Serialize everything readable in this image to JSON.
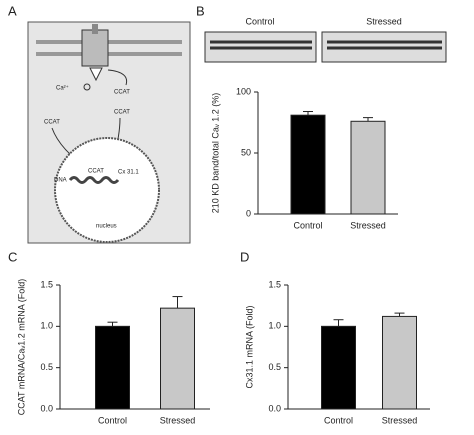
{
  "panel_labels": [
    "A",
    "B",
    "C",
    "D"
  ],
  "diagram": {
    "ion": "Ca²⁺",
    "protein": [
      "CCAT",
      "CCAT",
      "CCAT",
      "CCAT"
    ],
    "dna": "DNA",
    "gene": "Cx 31.1",
    "nucleus": "nucleus"
  },
  "blot": {
    "groups": [
      "Control",
      "Stressed"
    ]
  },
  "chart_data": [
    {
      "type": "bar",
      "ylabel": "210 KD band/total Caᵥ 1.2 (%)",
      "categories": [
        "Control",
        "Stressed"
      ],
      "values": [
        81,
        76
      ],
      "errors": [
        3,
        3
      ],
      "colors": [
        "#000000",
        "#c8c8c8"
      ],
      "ylim": [
        0,
        100
      ],
      "yticks": [
        0,
        50,
        100
      ]
    },
    {
      "type": "bar",
      "ylabel": "CCAT mRNA/Caᵥ1.2 mRNA (Fold)",
      "categories": [
        "Control",
        "Stressed"
      ],
      "values": [
        1.0,
        1.22
      ],
      "errors": [
        0.05,
        0.14
      ],
      "colors": [
        "#000000",
        "#c8c8c8"
      ],
      "ylim": [
        0,
        1.5
      ],
      "yticks": [
        {
          "value": 0,
          "label": "0.0"
        },
        {
          "value": 0.5,
          "label": "0.5"
        },
        {
          "value": 1.0,
          "label": "1.0"
        },
        {
          "value": 1.5,
          "label": "1.5"
        }
      ]
    },
    {
      "type": "bar",
      "ylabel": "Cx31.1 mRNA (Fold)",
      "categories": [
        "Control",
        "Stressed"
      ],
      "values": [
        1.0,
        1.12
      ],
      "errors": [
        0.08,
        0.04
      ],
      "colors": [
        "#000000",
        "#c8c8c8"
      ],
      "ylim": [
        0,
        1.5
      ],
      "yticks": [
        {
          "value": 0,
          "label": "0.0"
        },
        {
          "value": 0.5,
          "label": "0.5"
        },
        {
          "value": 1.0,
          "label": "1.0"
        },
        {
          "value": 1.5,
          "label": "1.5"
        }
      ]
    }
  ]
}
